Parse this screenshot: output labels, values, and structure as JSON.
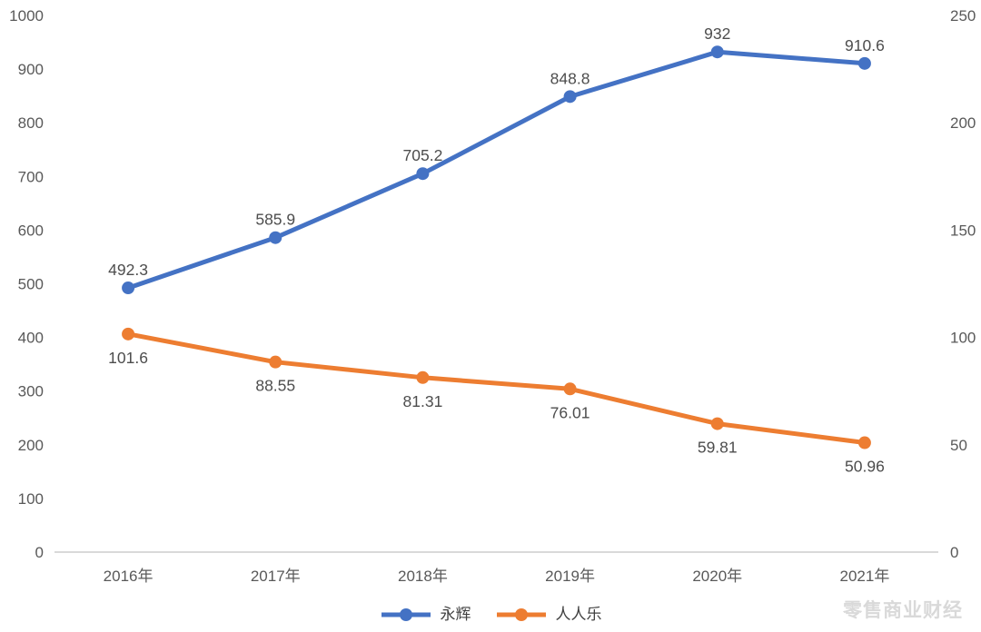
{
  "chart_data": {
    "type": "line",
    "title": "",
    "categories": [
      "2016年",
      "2017年",
      "2018年",
      "2019年",
      "2020年",
      "2021年"
    ],
    "series": [
      {
        "name": "永辉",
        "axis": "left",
        "color": "#4472c4",
        "values": [
          492.3,
          585.9,
          705.2,
          848.8,
          932,
          910.6
        ],
        "labels": [
          "492.3",
          "585.9",
          "705.2",
          "848.8",
          "932",
          "910.6"
        ],
        "label_position": "above"
      },
      {
        "name": "人人乐",
        "axis": "right",
        "color": "#ed7d31",
        "values": [
          101.6,
          88.55,
          81.31,
          76.01,
          59.81,
          50.96
        ],
        "labels": [
          "101.6",
          "88.55",
          "81.31",
          "76.01",
          "59.81",
          "50.96"
        ],
        "label_position": "below"
      }
    ],
    "left_axis": {
      "min": 0,
      "max": 1000,
      "step": 100,
      "ticks": [
        "0",
        "100",
        "200",
        "300",
        "400",
        "500",
        "600",
        "700",
        "800",
        "900",
        "1000"
      ]
    },
    "right_axis": {
      "min": 0,
      "max": 250,
      "step": 50,
      "ticks": [
        "0",
        "50",
        "100",
        "150",
        "200",
        "250"
      ]
    },
    "grid": false,
    "legend_position": "bottom"
  },
  "legend": {
    "items": [
      {
        "label": "永辉",
        "color": "#4472c4"
      },
      {
        "label": "人人乐",
        "color": "#ed7d31"
      }
    ]
  },
  "watermark": {
    "text": "零售商业财经",
    "color": "#d9d9d9"
  },
  "colors": {
    "series_blue": "#4472c4",
    "series_orange": "#ed7d31",
    "axis_line": "#d9d9d9",
    "tick_text": "#595959",
    "label_text": "#4d4d4d"
  }
}
